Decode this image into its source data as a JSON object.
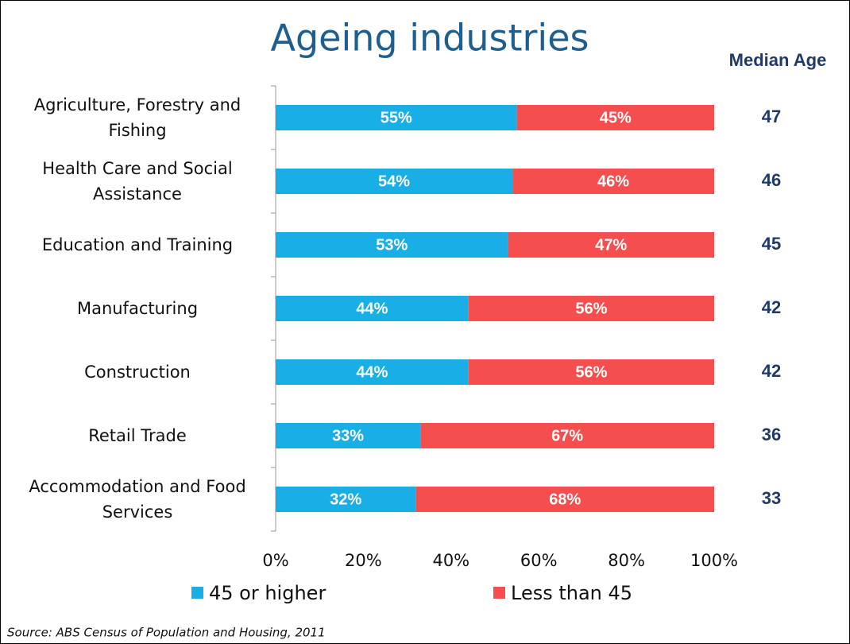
{
  "chart_data": {
    "type": "stacked_barh",
    "title": "Ageing industries",
    "categories": [
      "Agriculture, Forestry and Fishing",
      "Health Care and Social Assistance",
      "Education and Training",
      "Manufacturing",
      "Construction",
      "Retail Trade",
      "Accommodation and Food Services"
    ],
    "series": [
      {
        "name": "45 or higher",
        "color": "#19aee6",
        "values": [
          55,
          54,
          53,
          44,
          44,
          33,
          32
        ],
        "value_labels": [
          "55%",
          "54%",
          "53%",
          "44%",
          "44%",
          "33%",
          "32%"
        ]
      },
      {
        "name": "Less than 45",
        "color": "#f44e4e",
        "values": [
          45,
          46,
          47,
          56,
          56,
          67,
          68
        ],
        "value_labels": [
          "45%",
          "46%",
          "47%",
          "56%",
          "56%",
          "67%",
          "68%"
        ]
      }
    ],
    "xlim": [
      0,
      100
    ],
    "xticks": [
      {
        "value": 0,
        "label": "0%"
      },
      {
        "value": 20,
        "label": "20%"
      },
      {
        "value": 40,
        "label": "40%"
      },
      {
        "value": 60,
        "label": "60%"
      },
      {
        "value": 80,
        "label": "80%"
      },
      {
        "value": 100,
        "label": "100%"
      }
    ],
    "median_age": {
      "label": "Median Age",
      "values": [
        47,
        46,
        45,
        42,
        42,
        36,
        33
      ]
    },
    "source": "Source: ABS Census of Population and Housing, 2011"
  }
}
